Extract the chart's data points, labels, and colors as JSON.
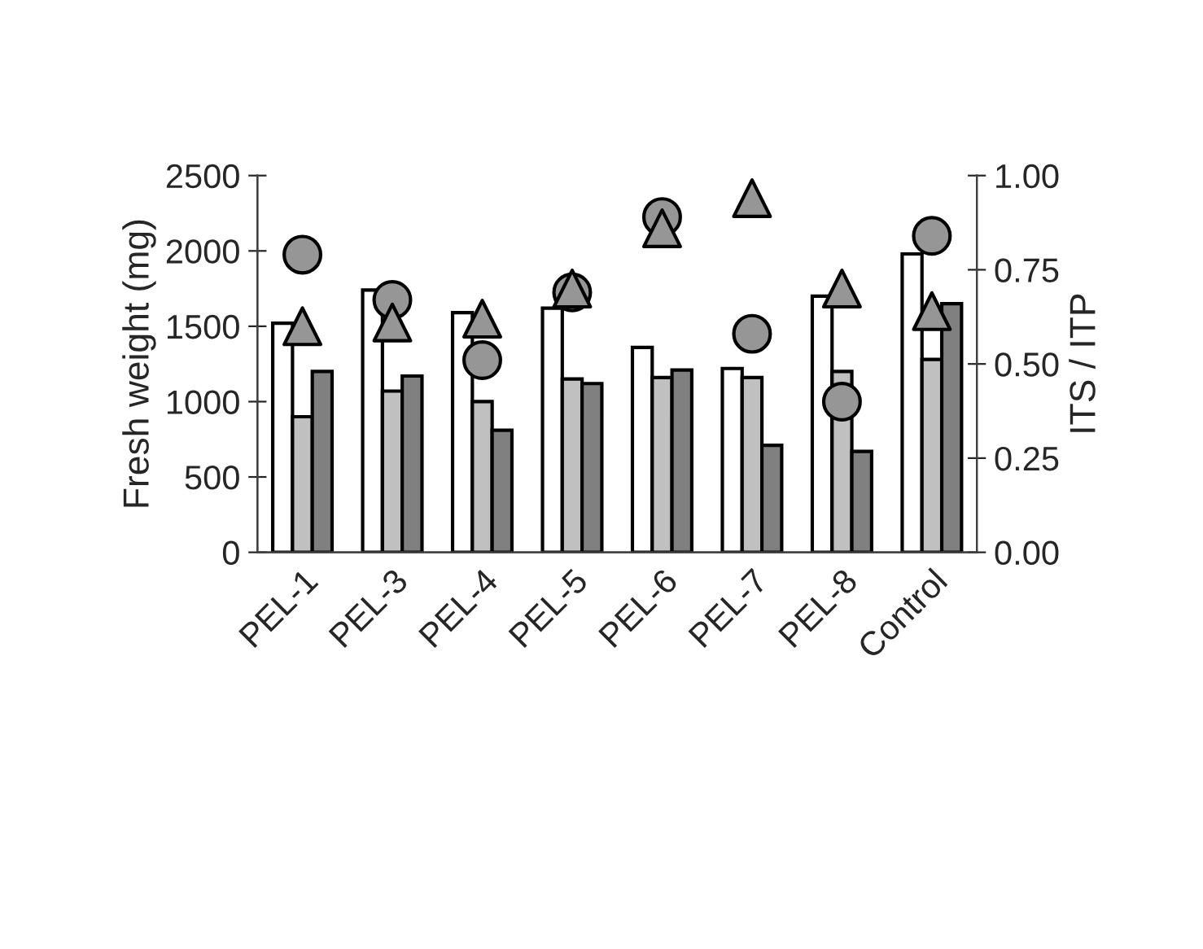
{
  "chart_data": {
    "type": "bar",
    "categories": [
      "PEL-1",
      "PEL-3",
      "PEL-4",
      "PEL-5",
      "PEL-6",
      "PEL-7",
      "PEL-8",
      "Control"
    ],
    "series": [
      {
        "color": "#ffffff",
        "values": [
          1520,
          1740,
          1590,
          1620,
          1360,
          1220,
          1700,
          1980
        ]
      },
      {
        "color": "#c0c0c0",
        "values": [
          900,
          1070,
          1000,
          1150,
          1160,
          1160,
          1200,
          1280
        ]
      },
      {
        "color": "#808080",
        "values": [
          1200,
          1170,
          810,
          1120,
          1210,
          710,
          670,
          1650
        ]
      },
      {
        "type": "scatter",
        "axis": "y2",
        "marker": "circle",
        "color": "#969696",
        "values": [
          0.79,
          0.67,
          0.51,
          0.69,
          0.89,
          0.58,
          0.4,
          0.84
        ]
      },
      {
        "type": "scatter",
        "axis": "y2",
        "marker": "triangle",
        "color": "#969696",
        "values": [
          0.6,
          0.61,
          0.62,
          0.7,
          0.86,
          0.94,
          0.7,
          0.64
        ]
      }
    ],
    "ylabel": "Fresh weight (mg)",
    "y2label": "ITS / ITP",
    "ylim": [
      0,
      2500
    ],
    "yticks": [
      0,
      500,
      1000,
      1500,
      2000,
      2500
    ],
    "y2lim": [
      0,
      1
    ],
    "y2ticks": [
      {
        "value": 0,
        "label": "0.00"
      },
      {
        "value": 0.25,
        "label": "0.25"
      },
      {
        "value": 0.5,
        "label": "0.50"
      },
      {
        "value": 0.75,
        "label": "0.75"
      },
      {
        "value": 1,
        "label": "1.00"
      }
    ],
    "grid": false,
    "legend": false
  }
}
